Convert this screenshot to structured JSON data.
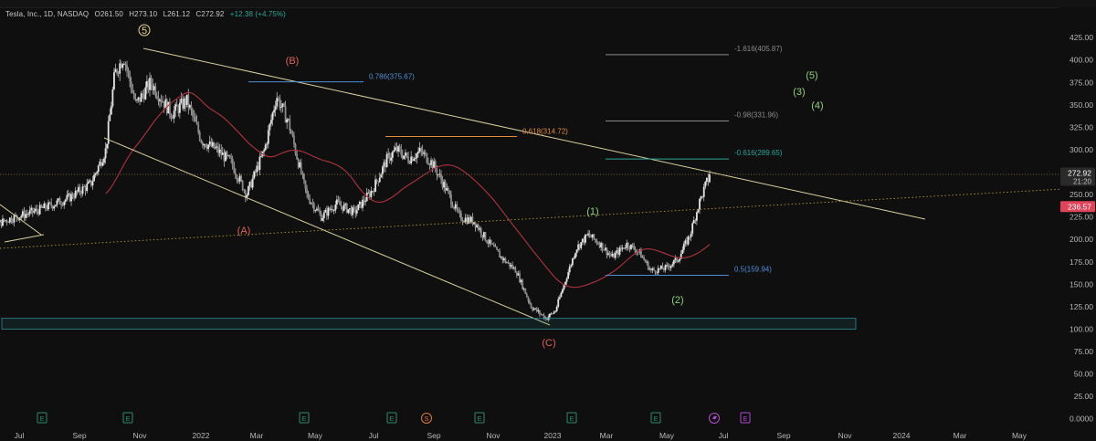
{
  "legend": {
    "symbol": "Tesla, Inc., 1D, NASDAQ",
    "open": "O261.50",
    "high": "H273.10",
    "low": "L261.12",
    "close": "C272.92",
    "change": "+12.38 (+4.75%)"
  },
  "price_axis": {
    "ticks": [
      "425.00",
      "400.00",
      "375.00",
      "350.00",
      "325.00",
      "300.00",
      "275.00",
      "250.00",
      "225.00",
      "200.00",
      "175.00",
      "150.00",
      "125.00",
      "100.00",
      "75.00",
      "50.00",
      "25.00",
      "0.0000"
    ],
    "current_price": "272.92",
    "countdown": "21:20",
    "ma_price": "236.57",
    "current_color": "#2a2a2a",
    "ma_color": "#e0435a"
  },
  "time_axis": {
    "ticks": [
      "Jul",
      "Sep",
      "Nov",
      "2022",
      "Mar",
      "May",
      "Jul",
      "Sep",
      "Nov",
      "2023",
      "Mar",
      "May",
      "Jul",
      "Sep",
      "Nov",
      "2024",
      "Mar",
      "May"
    ]
  },
  "chart_data": {
    "type": "candlestick",
    "y_scale": "linear",
    "ylim": [
      0,
      435
    ],
    "x_range": [
      "2021-06",
      "2024-06"
    ],
    "grid": false,
    "key_prices": {
      "peak_2021_11": 414,
      "peak_2022_04": 384,
      "peak_2022_08": 314,
      "low_2023_01": 101,
      "current_close": 272.92,
      "moving_average": 236.57
    },
    "fibonacci_levels": [
      {
        "label": "0.786(375.67)",
        "value": 375.67
      },
      {
        "label": "0.618(314.72)",
        "value": 314.72
      },
      {
        "label": "-1.616(405.87)",
        "value": 405.87
      },
      {
        "label": "-0.98(331.96)",
        "value": 331.96
      },
      {
        "label": "-0.616(289.65)",
        "value": 289.65
      },
      {
        "label": "0.5(159.94)",
        "value": 159.94
      }
    ],
    "wave_labels": [
      {
        "label": "5",
        "date": "2021-11",
        "circled": true
      },
      {
        "label": "(A)",
        "date": "2022-03"
      },
      {
        "label": "(B)",
        "date": "2022-04"
      },
      {
        "label": "(C)",
        "date": "2023-01"
      },
      {
        "label": "(1)",
        "date": "2023-02"
      },
      {
        "label": "(2)",
        "date": "2023-04"
      },
      {
        "label": "(3)",
        "date": "2023-08"
      },
      {
        "label": "(4)",
        "date": "2023-08"
      },
      {
        "label": "(5)",
        "date": "2023-09"
      }
    ],
    "support_zone": [
      100,
      112
    ],
    "event_markers": [
      "E",
      "E",
      "E",
      "E",
      "E",
      "S",
      "E",
      "E",
      "E",
      "E",
      "E",
      "E",
      "E"
    ]
  }
}
